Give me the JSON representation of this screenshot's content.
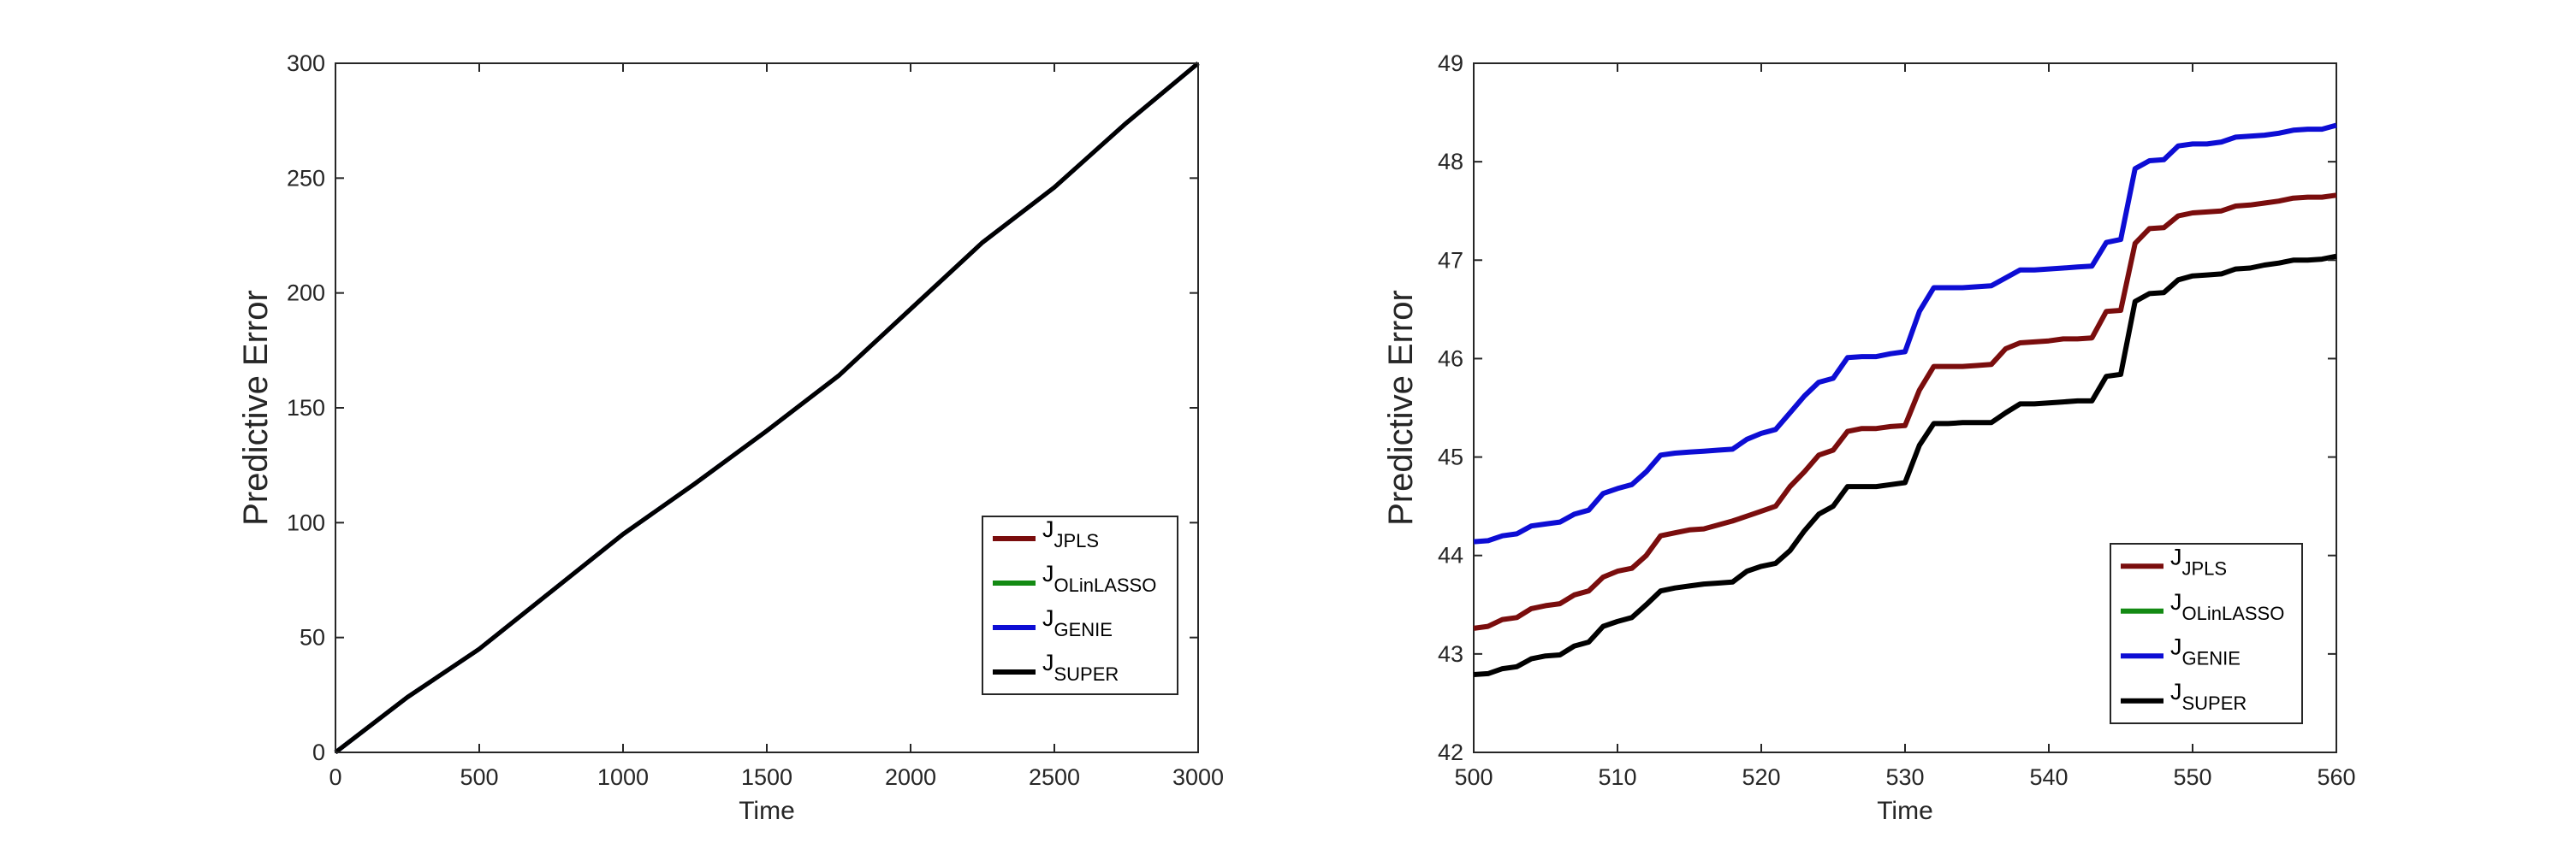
{
  "chart_data": [
    {
      "type": "line",
      "xlabel": "Time",
      "ylabel": "Predictive Error",
      "xlim": [
        0,
        3000
      ],
      "ylim": [
        0,
        300
      ],
      "xticks": [
        0,
        500,
        1000,
        1500,
        2000,
        2500,
        3000
      ],
      "yticks": [
        0,
        50,
        100,
        150,
        200,
        250,
        300
      ],
      "grid": false,
      "legend_position": "bottom-right",
      "series": [
        {
          "name": "J",
          "sub": "JPLS",
          "color": "#7a0d0d",
          "x": [
            0,
            250,
            500,
            750,
            1000,
            1250,
            1500,
            1750,
            2000,
            2250,
            2500,
            2750,
            3000
          ],
          "y": [
            0,
            24,
            45,
            70,
            95,
            117,
            140,
            164,
            193,
            222,
            246,
            274,
            300
          ]
        },
        {
          "name": "J",
          "sub": "OLinLASSO",
          "color": "#138a13",
          "x": [
            0,
            250,
            500,
            750,
            1000,
            1250,
            1500,
            1750,
            2000,
            2250,
            2500,
            2750,
            3000
          ],
          "y": [
            0,
            24,
            45,
            70,
            95,
            117,
            140,
            164,
            193,
            222,
            246,
            274,
            300
          ]
        },
        {
          "name": "J",
          "sub": "GENIE",
          "color": "#0d0dd4",
          "x": [
            0,
            250,
            500,
            750,
            1000,
            1250,
            1500,
            1750,
            2000,
            2250,
            2500,
            2750,
            3000
          ],
          "y": [
            0,
            24,
            45,
            70,
            95,
            117,
            140,
            164,
            193,
            222,
            246,
            274,
            300
          ]
        },
        {
          "name": "J",
          "sub": "SUPER",
          "color": "#000000",
          "x": [
            0,
            250,
            500,
            750,
            1000,
            1250,
            1500,
            1750,
            2000,
            2250,
            2500,
            2750,
            3000
          ],
          "y": [
            0,
            24,
            45,
            70,
            95,
            117,
            140,
            164,
            193,
            222,
            246,
            274,
            300
          ]
        }
      ]
    },
    {
      "type": "line",
      "xlabel": "Time",
      "ylabel": "Predictive Error",
      "xlim": [
        500,
        560
      ],
      "ylim": [
        42,
        49
      ],
      "xticks": [
        500,
        510,
        520,
        530,
        540,
        550,
        560
      ],
      "yticks": [
        42,
        43,
        44,
        45,
        46,
        47,
        48,
        49
      ],
      "grid": false,
      "legend_position": "bottom-right",
      "series": [
        {
          "name": "J",
          "sub": "JPLS",
          "color": "#7a0d0d",
          "x": [
            500,
            501,
            502,
            503,
            504,
            505,
            506,
            507,
            508,
            509,
            510,
            511,
            512,
            513,
            514,
            515,
            516,
            517,
            518,
            519,
            520,
            521,
            522,
            523,
            524,
            525,
            526,
            527,
            528,
            529,
            530,
            531,
            532,
            533,
            534,
            535,
            536,
            537,
            538,
            539,
            540,
            541,
            542,
            543,
            544,
            545,
            546,
            547,
            548,
            549,
            550,
            551,
            552,
            553,
            554,
            555,
            556,
            557,
            558,
            559,
            560
          ],
          "y": [
            43.26,
            43.28,
            43.35,
            43.37,
            43.46,
            43.49,
            43.51,
            43.6,
            43.64,
            43.78,
            43.84,
            43.87,
            44.0,
            44.2,
            44.23,
            44.26,
            44.27,
            44.31,
            44.35,
            44.4,
            44.45,
            44.5,
            44.7,
            44.85,
            45.02,
            45.07,
            45.26,
            45.29,
            45.29,
            45.31,
            45.32,
            45.68,
            45.92,
            45.92,
            45.92,
            45.93,
            45.94,
            46.1,
            46.16,
            46.17,
            46.18,
            46.2,
            46.2,
            46.21,
            46.48,
            46.49,
            47.17,
            47.32,
            47.33,
            47.45,
            47.48,
            47.49,
            47.5,
            47.55,
            47.56,
            47.58,
            47.6,
            47.63,
            47.64,
            47.64,
            47.66
          ]
        },
        {
          "name": "J",
          "sub": "OLinLASSO",
          "color": "#138a13",
          "x": [],
          "y": []
        },
        {
          "name": "J",
          "sub": "GENIE",
          "color": "#0d0dd4",
          "x": [
            500,
            501,
            502,
            503,
            504,
            505,
            506,
            507,
            508,
            509,
            510,
            511,
            512,
            513,
            514,
            515,
            516,
            517,
            518,
            519,
            520,
            521,
            522,
            523,
            524,
            525,
            526,
            527,
            528,
            529,
            530,
            531,
            532,
            533,
            534,
            535,
            536,
            537,
            538,
            539,
            540,
            541,
            542,
            543,
            544,
            545,
            546,
            547,
            548,
            549,
            550,
            551,
            552,
            553,
            554,
            555,
            556,
            557,
            558,
            559,
            560
          ],
          "y": [
            44.14,
            44.15,
            44.2,
            44.22,
            44.3,
            44.32,
            44.34,
            44.42,
            44.46,
            44.63,
            44.68,
            44.72,
            44.85,
            45.02,
            45.04,
            45.05,
            45.06,
            45.07,
            45.08,
            45.18,
            45.24,
            45.28,
            45.45,
            45.62,
            45.76,
            45.8,
            46.01,
            46.02,
            46.02,
            46.05,
            46.07,
            46.48,
            46.72,
            46.72,
            46.72,
            46.73,
            46.74,
            46.82,
            46.9,
            46.9,
            46.91,
            46.92,
            46.93,
            46.94,
            47.18,
            47.21,
            47.93,
            48.01,
            48.02,
            48.16,
            48.18,
            48.18,
            48.2,
            48.25,
            48.26,
            48.27,
            48.29,
            48.32,
            48.33,
            48.33,
            48.37
          ]
        },
        {
          "name": "J",
          "sub": "SUPER",
          "color": "#000000",
          "x": [
            500,
            501,
            502,
            503,
            504,
            505,
            506,
            507,
            508,
            509,
            510,
            511,
            512,
            513,
            514,
            515,
            516,
            517,
            518,
            519,
            520,
            521,
            522,
            523,
            524,
            525,
            526,
            527,
            528,
            529,
            530,
            531,
            532,
            533,
            534,
            535,
            536,
            537,
            538,
            539,
            540,
            541,
            542,
            543,
            544,
            545,
            546,
            547,
            548,
            549,
            550,
            551,
            552,
            553,
            554,
            555,
            556,
            557,
            558,
            559,
            560
          ],
          "y": [
            42.79,
            42.8,
            42.85,
            42.87,
            42.95,
            42.98,
            42.99,
            43.08,
            43.12,
            43.28,
            43.33,
            43.37,
            43.5,
            43.64,
            43.67,
            43.69,
            43.71,
            43.72,
            43.73,
            43.84,
            43.89,
            43.92,
            44.05,
            44.25,
            44.42,
            44.5,
            44.7,
            44.7,
            44.7,
            44.72,
            44.74,
            45.12,
            45.34,
            45.34,
            45.35,
            45.35,
            45.35,
            45.45,
            45.54,
            45.54,
            45.55,
            45.56,
            45.57,
            45.57,
            45.82,
            45.84,
            46.58,
            46.66,
            46.67,
            46.8,
            46.84,
            46.85,
            46.86,
            46.91,
            46.92,
            46.95,
            46.97,
            47.0,
            47.0,
            47.01,
            47.04
          ]
        }
      ]
    }
  ]
}
